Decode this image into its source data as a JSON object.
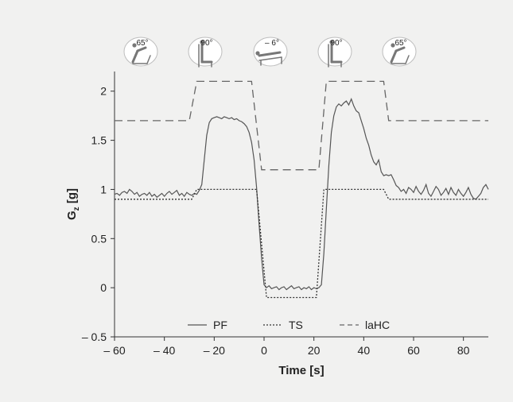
{
  "chart_data": {
    "type": "line",
    "xlabel": "Time [s]",
    "ylabel_main": "G",
    "ylabel_sub": "z",
    "ylabel_unit": " [g]",
    "xlim": [
      -60,
      90
    ],
    "ylim": [
      -0.5,
      2.2
    ],
    "xticks": [
      -60,
      -40,
      -20,
      0,
      20,
      40,
      60,
      80
    ],
    "xtick_labels": [
      "– 60",
      "– 40",
      "– 20",
      "0",
      "20",
      "40",
      "60",
      "80"
    ],
    "yticks": [
      -0.5,
      0,
      0.5,
      1,
      1.5,
      2
    ],
    "ytick_labels": [
      "– 0.5",
      "0",
      "0.5",
      "1",
      "1.5",
      "2"
    ],
    "grid": false,
    "legend_position": "bottom-center",
    "posture_icons": [
      {
        "angle_label": "65°",
        "time": -55
      },
      {
        "angle_label": "90°",
        "time": -30
      },
      {
        "angle_label": "– 6°",
        "time": 4
      },
      {
        "angle_label": "90°",
        "time": 26
      },
      {
        "angle_label": "65°",
        "time": 52
      }
    ],
    "series": [
      {
        "name": "PF",
        "style": "solid",
        "color": "#555555",
        "x": [
          -60,
          -59,
          -58,
          -57,
          -56,
          -55,
          -54,
          -53,
          -52,
          -51,
          -50,
          -49,
          -48,
          -47,
          -46,
          -45,
          -44,
          -43,
          -42,
          -41,
          -40,
          -39,
          -38,
          -37,
          -36,
          -35,
          -34,
          -33,
          -32,
          -31,
          -30,
          -29,
          -28,
          -27,
          -26,
          -25,
          -24,
          -23,
          -22,
          -21,
          -20,
          -19,
          -18,
          -17,
          -16,
          -15,
          -14,
          -13,
          -12,
          -11,
          -10,
          -9,
          -8,
          -7,
          -6,
          -5,
          -4,
          -3,
          -2,
          -1,
          0,
          1,
          2,
          3,
          4,
          5,
          6,
          7,
          8,
          9,
          10,
          11,
          12,
          13,
          14,
          15,
          16,
          17,
          18,
          19,
          20,
          21,
          22,
          23,
          24,
          25,
          26,
          27,
          28,
          29,
          30,
          31,
          32,
          33,
          34,
          35,
          36,
          37,
          38,
          39,
          40,
          41,
          42,
          43,
          44,
          45,
          46,
          47,
          48,
          49,
          50,
          51,
          52,
          53,
          54,
          55,
          56,
          57,
          58,
          59,
          60,
          61,
          62,
          63,
          64,
          65,
          66,
          67,
          68,
          69,
          70,
          71,
          72,
          73,
          74,
          75,
          76,
          77,
          78,
          79,
          80,
          81,
          82,
          83,
          84,
          85,
          86,
          87,
          88,
          89,
          90
        ],
        "y": [
          0.95,
          0.96,
          0.94,
          0.97,
          0.98,
          0.96,
          1.0,
          0.98,
          0.95,
          0.97,
          0.93,
          0.95,
          0.96,
          0.94,
          0.97,
          0.93,
          0.95,
          0.92,
          0.94,
          0.96,
          0.93,
          0.96,
          0.98,
          0.95,
          0.97,
          0.99,
          0.94,
          0.96,
          0.93,
          0.97,
          0.95,
          0.94,
          0.96,
          0.95,
          0.99,
          1.05,
          1.3,
          1.55,
          1.68,
          1.72,
          1.73,
          1.74,
          1.73,
          1.72,
          1.74,
          1.73,
          1.72,
          1.73,
          1.71,
          1.72,
          1.7,
          1.69,
          1.67,
          1.64,
          1.58,
          1.48,
          1.3,
          1.02,
          0.65,
          0.3,
          0.03,
          0.0,
          0.02,
          -0.01,
          0.0,
          0.01,
          -0.02,
          0.0,
          0.01,
          -0.02,
          0.0,
          0.02,
          -0.01,
          0.0,
          0.01,
          -0.02,
          0.0,
          -0.01,
          0.01,
          -0.02,
          0.0,
          -0.01,
          0.0,
          0.03,
          0.35,
          0.8,
          1.25,
          1.58,
          1.75,
          1.84,
          1.87,
          1.85,
          1.88,
          1.9,
          1.86,
          1.92,
          1.85,
          1.8,
          1.78,
          1.7,
          1.62,
          1.52,
          1.45,
          1.35,
          1.28,
          1.25,
          1.3,
          1.18,
          1.14,
          1.15,
          1.14,
          1.15,
          1.1,
          1.04,
          1.02,
          0.98,
          1.0,
          0.96,
          1.02,
          1.0,
          0.97,
          1.03,
          0.98,
          0.95,
          0.99,
          1.05,
          0.96,
          0.93,
          0.98,
          1.03,
          1.0,
          0.94,
          0.97,
          1.01,
          0.95,
          1.02,
          0.97,
          0.94,
          1.0,
          0.96,
          0.93,
          0.97,
          1.02,
          0.95,
          0.91,
          0.9,
          0.93,
          0.96,
          1.02,
          1.05,
          1.0
        ]
      },
      {
        "name": "TS",
        "style": "dotted",
        "color": "#333333",
        "x": [
          -60,
          -29,
          -27,
          -3,
          1,
          21,
          24,
          48,
          50,
          90
        ],
        "y": [
          0.9,
          0.9,
          1.0,
          1.0,
          -0.1,
          -0.1,
          1.0,
          1.0,
          0.9,
          0.9
        ]
      },
      {
        "name": "laHC",
        "style": "dashed",
        "color": "#666666",
        "x": [
          -60,
          -30,
          -27,
          -5,
          -1,
          22,
          25,
          48,
          50,
          90
        ],
        "y": [
          1.7,
          1.7,
          2.1,
          2.1,
          1.2,
          1.2,
          2.1,
          2.1,
          1.7,
          1.7
        ]
      }
    ]
  }
}
